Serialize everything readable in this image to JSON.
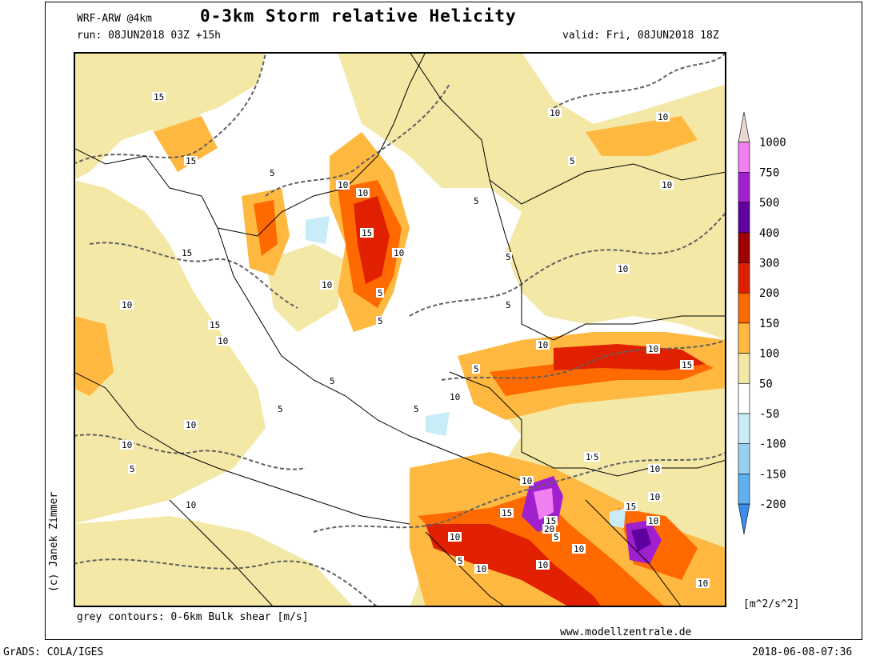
{
  "header": {
    "model": "WRF-ARW @4km",
    "title": "0-3km Storm relative Helicity",
    "run": "run: 08JUN2018 03Z +15h",
    "valid": "valid: Fri, 08JUN2018 18Z"
  },
  "footer": {
    "contours_note": "grey contours: 0-6km Bulk shear [m/s]",
    "website": "www.modellzentrale.de",
    "grads": "GrADS: COLA/IGES",
    "timestamp": "2018-06-08-07:36",
    "copyright": "(c) Janek Zimmer"
  },
  "legend": {
    "unit": "[m^2/s^2]",
    "bins": [
      {
        "label": "1000",
        "color": "#e8d8d0"
      },
      {
        "label": "750",
        "color": "#f080f0"
      },
      {
        "label": "500",
        "color": "#a020d0"
      },
      {
        "label": "400",
        "color": "#6000a0"
      },
      {
        "label": "300",
        "color": "#a00000"
      },
      {
        "label": "200",
        "color": "#e02000"
      },
      {
        "label": "150",
        "color": "#ff6a00"
      },
      {
        "label": "100",
        "color": "#ffb840"
      },
      {
        "label": "50",
        "color": "#f3e8a6"
      },
      {
        "label": "-50",
        "color": "#ffffff"
      },
      {
        "label": "-100",
        "color": "#c8ecf8"
      },
      {
        "label": "-150",
        "color": "#98d0f0"
      },
      {
        "label": "-200",
        "color": "#60b0f0"
      },
      {
        "label": "",
        "color": "#3c8cf0"
      }
    ]
  },
  "contour_labels": [
    "15",
    "15",
    "5",
    "10",
    "10",
    "15",
    "10",
    "15",
    "10",
    "5",
    "5",
    "10",
    "15",
    "10",
    "10",
    "5",
    "5",
    "10",
    "10",
    "5",
    "10",
    "15",
    "10",
    "10",
    "5",
    "5",
    "10",
    "10",
    "5",
    "10",
    "5",
    "10",
    "5",
    "10",
    "15",
    "20",
    "5",
    "10",
    "10",
    "15",
    "10",
    "5",
    "10",
    "10",
    "15",
    "10",
    "10",
    "10",
    "5",
    "5",
    "10"
  ]
}
